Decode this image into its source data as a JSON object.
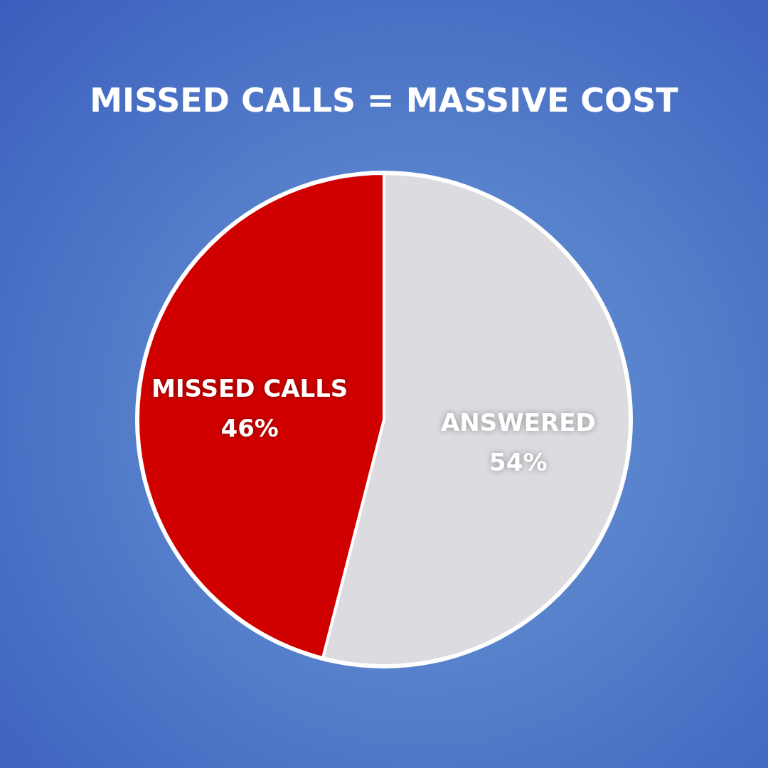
{
  "chart_data": {
    "type": "pie",
    "title": "MISSED CALLS = MASSIVE COST",
    "categories": [
      "ANSWERED",
      "MISSED CALLS"
    ],
    "values": [
      54,
      46
    ],
    "colors": [
      "#dcdbe0",
      "#d10000"
    ],
    "value_labels": [
      "54%",
      "46%"
    ]
  }
}
